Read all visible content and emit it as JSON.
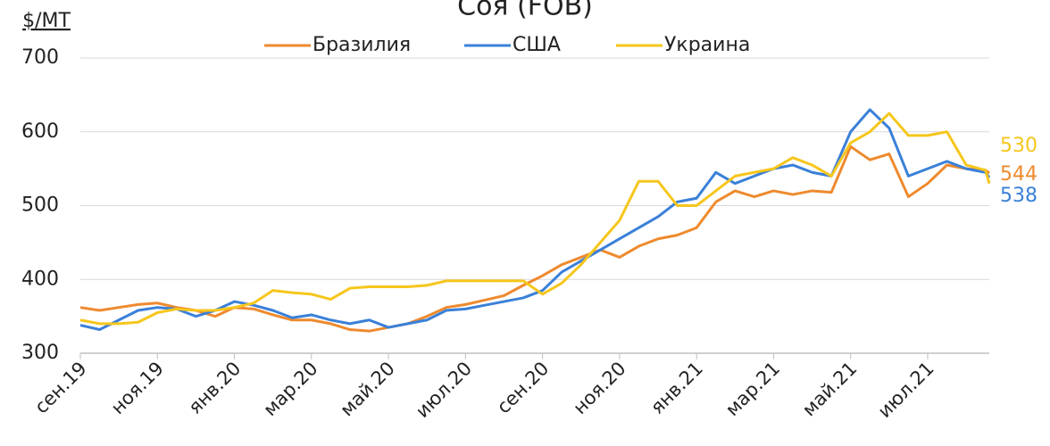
{
  "chart_data": {
    "type": "line",
    "title": "Соя (FOB)",
    "y_label": "$/МТ",
    "x": [
      0,
      0.5,
      1,
      1.5,
      2,
      2.5,
      3,
      3.5,
      4,
      4.5,
      5,
      5.5,
      6,
      6.5,
      7,
      7.5,
      8,
      8.5,
      9,
      9.5,
      10,
      10.5,
      11,
      11.5,
      12,
      12.5,
      13,
      13.5,
      14,
      14.5,
      15,
      15.5,
      16,
      16.5,
      17,
      17.5,
      18,
      18.5,
      19,
      19.5,
      20,
      20.5,
      21,
      21.5,
      22,
      22.5,
      23,
      23.5,
      23.6
    ],
    "xlim": [
      0,
      23.6
    ],
    "xticks": [
      {
        "value": 0,
        "label": "сен.19"
      },
      {
        "value": 2,
        "label": "ноя.19"
      },
      {
        "value": 4,
        "label": "янв.20"
      },
      {
        "value": 6,
        "label": "мар.20"
      },
      {
        "value": 8,
        "label": "май.20"
      },
      {
        "value": 10,
        "label": "июл.20"
      },
      {
        "value": 12,
        "label": "сен.20"
      },
      {
        "value": 14,
        "label": "ноя.20"
      },
      {
        "value": 16,
        "label": "янв.21"
      },
      {
        "value": 18,
        "label": "мар.21"
      },
      {
        "value": 20,
        "label": "май.21"
      },
      {
        "value": 22,
        "label": "июл.21"
      }
    ],
    "ylim": [
      300,
      700
    ],
    "yticks": [
      300,
      400,
      500,
      600,
      700
    ],
    "grid": true,
    "series": [
      {
        "name": "Бразилия",
        "color": "#ee8a2e",
        "values": [
          362,
          358,
          362,
          366,
          368,
          362,
          358,
          350,
          362,
          360,
          352,
          345,
          345,
          340,
          332,
          330,
          335,
          340,
          350,
          362,
          366,
          372,
          378,
          392,
          405,
          420,
          430,
          440,
          430,
          445,
          455,
          460,
          470,
          505,
          520,
          512,
          520,
          515,
          520,
          518,
          580,
          562,
          570,
          512,
          530,
          555,
          550,
          548,
          544
        ]
      },
      {
        "name": "США",
        "color": "#3a80d8",
        "values": [
          338,
          332,
          345,
          358,
          362,
          360,
          350,
          358,
          370,
          365,
          358,
          348,
          352,
          345,
          340,
          345,
          335,
          340,
          345,
          358,
          360,
          365,
          370,
          375,
          385,
          410,
          425,
          440,
          455,
          470,
          485,
          505,
          510,
          545,
          530,
          540,
          550,
          555,
          545,
          540,
          600,
          630,
          605,
          540,
          550,
          560,
          550,
          545,
          538
        ]
      },
      {
        "name": "Украина",
        "color": "#f6c61c",
        "values": [
          345,
          340,
          340,
          342,
          355,
          360,
          358,
          358,
          362,
          368,
          385,
          382,
          380,
          373,
          388,
          390,
          390,
          390,
          392,
          398,
          398,
          398,
          398,
          398,
          380,
          395,
          420,
          450,
          480,
          533,
          533,
          500,
          500,
          520,
          540,
          545,
          550,
          565,
          555,
          540,
          585,
          600,
          625,
          595,
          595,
          600,
          555,
          548,
          530
        ]
      }
    ]
  }
}
